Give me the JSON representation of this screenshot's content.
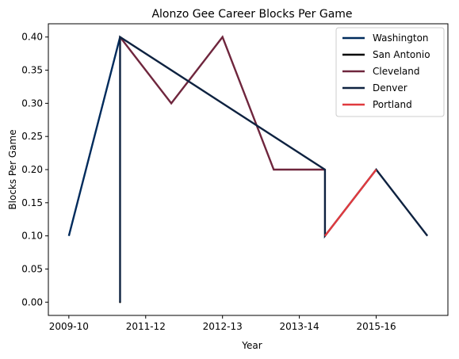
{
  "chart_data": {
    "type": "line",
    "title": "Alonzo Gee Career Blocks Per Game",
    "xlabel": "Year",
    "ylabel": "Blocks Per Game",
    "x_ticks": [
      "2009-10",
      "2011-12",
      "2012-13",
      "2013-14",
      "2015-16"
    ],
    "y_ticks": [
      "0.00",
      "0.05",
      "0.10",
      "0.15",
      "0.20",
      "0.25",
      "0.30",
      "0.35",
      "0.40"
    ],
    "ylim": [
      -0.02,
      0.42
    ],
    "xlim": [
      -0.4,
      7.4
    ],
    "grid": false,
    "legend_position": "top-right",
    "series": [
      {
        "name": "Washington",
        "color": "#002b5c",
        "points": [
          {
            "x": 0,
            "y": 0.1
          },
          {
            "x": 1,
            "y": 0.4
          }
        ]
      },
      {
        "name": "San Antonio",
        "color": "#000000",
        "points": [
          {
            "x": 1,
            "y": 0.0
          }
        ]
      },
      {
        "name": "Cleveland",
        "color": "#6f263d",
        "points": [
          {
            "x": 1,
            "y": 0.4
          },
          {
            "x": 2,
            "y": 0.3
          },
          {
            "x": 3,
            "y": 0.4
          },
          {
            "x": 4,
            "y": 0.2
          },
          {
            "x": 5,
            "y": 0.2
          }
        ]
      },
      {
        "name": "Denver",
        "color": "#0e2240",
        "points": [
          {
            "x": 1,
            "y": 0.0
          },
          {
            "x": 1,
            "y": 0.4
          },
          {
            "x": 5,
            "y": 0.2
          },
          {
            "x": 5,
            "y": 0.1
          },
          {
            "x": 6,
            "y": 0.2
          },
          {
            "x": 7,
            "y": 0.1
          }
        ]
      },
      {
        "name": "Portland",
        "color": "#e03a3e",
        "points": [
          {
            "x": 5,
            "y": 0.1
          },
          {
            "x": 6,
            "y": 0.2
          }
        ]
      }
    ]
  }
}
